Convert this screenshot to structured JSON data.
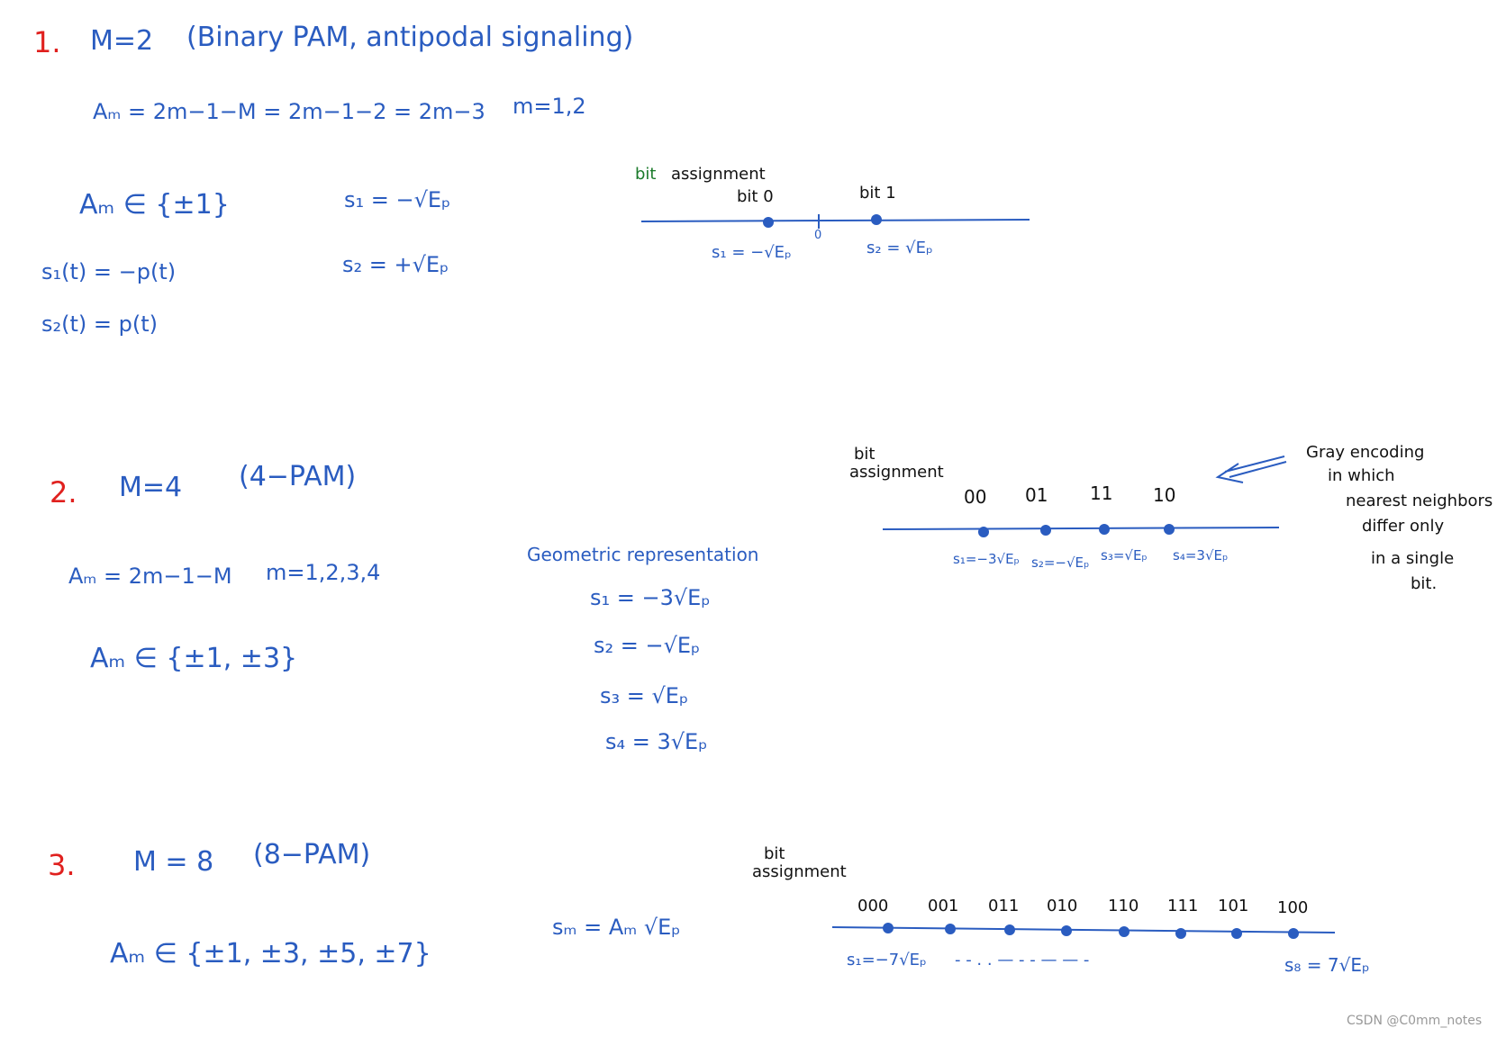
{
  "section_1": {
    "number": "1.",
    "heading": "M=2",
    "subtitle": "(Binary PAM, antipodal signaling)",
    "formula": "Aₘ = 2m−1−M = 2m−1−2 = 2m−3",
    "index_range": "m=1,2",
    "alphabet": "Aₘ ∈ {±1}",
    "signals": [
      "s₁ = −√Eₚ",
      "s₂ = +√Eₚ"
    ],
    "waveforms": [
      "s₁(t) = −p(t)",
      "s₂(t) = p(t)"
    ],
    "diagram": {
      "title_bit": "bit",
      "title_rest": "assignment",
      "bits": [
        "bit 0",
        "bit 1"
      ],
      "origin": "0",
      "labels": [
        "s₁ = −√Eₚ",
        "s₂ = √Eₚ"
      ]
    }
  },
  "section_2": {
    "number": "2.",
    "heading": "M=4",
    "subtitle": "(4−PAM)",
    "formula": "Aₘ = 2m−1−M",
    "index_range": "m=1,2,3,4",
    "alphabet": "Aₘ ∈ {±1, ±3}",
    "geometric": {
      "title": "Geometric representation",
      "signals": [
        "s₁ = −3√Eₚ",
        "s₂ = −√Eₚ",
        "s₃ = √Eₚ",
        "s₄ = 3√Eₚ"
      ]
    },
    "diagram": {
      "title": [
        "bit",
        "assignment"
      ],
      "codes": [
        "00",
        "01",
        "11",
        "10"
      ],
      "labels": [
        "s₁=−3√Eₚ",
        "s₂=−√Eₚ",
        "s₃=√Eₚ",
        "s₄=3√Eₚ"
      ]
    },
    "note": [
      "Gray encoding",
      "in which",
      "nearest neighbors",
      "differ only",
      "in a single",
      "bit."
    ]
  },
  "section_3": {
    "number": "3.",
    "heading": "M = 8",
    "subtitle": "(8−PAM)",
    "alphabet": "Aₘ ∈ {±1, ±3, ±5, ±7}",
    "general": "sₘ = Aₘ √Eₚ",
    "diagram": {
      "title": [
        "bit",
        "assignment"
      ],
      "codes": [
        "000",
        "001",
        "011",
        "010",
        "110",
        "111",
        "101",
        "100"
      ],
      "first_label": "s₁=−7√Eₚ",
      "ellipsis": "-  -  .  .   —   -  -   —  —  -",
      "last_label": "s₈ = 7√Eₚ"
    }
  },
  "watermark": "CSDN @C0mm_notes"
}
